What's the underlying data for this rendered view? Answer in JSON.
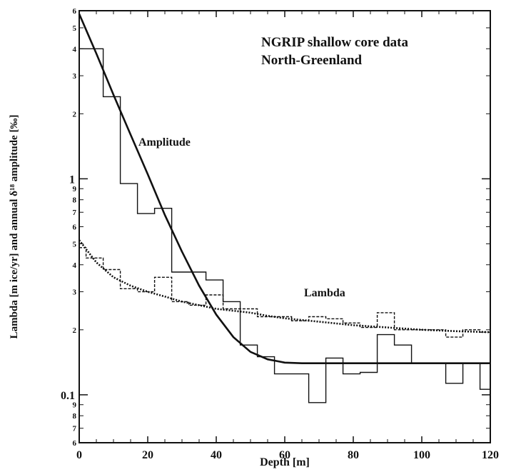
{
  "chart_data": {
    "type": "line",
    "title": "",
    "annotation": {
      "line1": "NGRIP shallow core data",
      "line2": "North-Greenland"
    },
    "xlabel": "Depth [m]",
    "ylabel": "Lambda [m ice/yr] and annual δ¹⁸ amplitude [‰]",
    "xlim": [
      0,
      120
    ],
    "ylim": [
      0.06,
      6
    ],
    "yscale": "log",
    "grid": false,
    "x_ticks": [
      0,
      20,
      40,
      60,
      80,
      100,
      120
    ],
    "x_tick_labels": [
      "0",
      "20",
      "40",
      "60",
      "80",
      "100",
      "120"
    ],
    "y_major_ticks": [
      {
        "value": 0.1,
        "label": "0.1"
      },
      {
        "value": 1,
        "label": "1"
      }
    ],
    "y_minor_ticks": [
      {
        "value": 0.06,
        "label": "6"
      },
      {
        "value": 0.07,
        "label": "7"
      },
      {
        "value": 0.08,
        "label": "8"
      },
      {
        "value": 0.09,
        "label": "9"
      },
      {
        "value": 0.2,
        "label": "2"
      },
      {
        "value": 0.3,
        "label": "3"
      },
      {
        "value": 0.4,
        "label": "4"
      },
      {
        "value": 0.5,
        "label": "5"
      },
      {
        "value": 0.6,
        "label": "6"
      },
      {
        "value": 0.7,
        "label": "7"
      },
      {
        "value": 0.8,
        "label": "8"
      },
      {
        "value": 0.9,
        "label": "9"
      },
      {
        "value": 2,
        "label": "2"
      },
      {
        "value": 3,
        "label": "3"
      },
      {
        "value": 4,
        "label": "4"
      },
      {
        "value": 5,
        "label": "5"
      },
      {
        "value": 6,
        "label": "6"
      }
    ],
    "series": [
      {
        "name": "Amplitude",
        "style": "solid-step",
        "color": "#111111",
        "bins": [
          {
            "x0": 0,
            "x1": 7,
            "y": 4.0
          },
          {
            "x0": 7,
            "x1": 12,
            "y": 2.4
          },
          {
            "x0": 12,
            "x1": 17,
            "y": 0.95
          },
          {
            "x0": 17,
            "x1": 22,
            "y": 0.69
          },
          {
            "x0": 22,
            "x1": 27,
            "y": 0.73
          },
          {
            "x0": 27,
            "x1": 37,
            "y": 0.37
          },
          {
            "x0": 37,
            "x1": 42,
            "y": 0.34
          },
          {
            "x0": 42,
            "x1": 47,
            "y": 0.27
          },
          {
            "x0": 47,
            "x1": 52,
            "y": 0.17
          },
          {
            "x0": 52,
            "x1": 57,
            "y": 0.15
          },
          {
            "x0": 57,
            "x1": 67,
            "y": 0.125
          },
          {
            "x0": 67,
            "x1": 72,
            "y": 0.092
          },
          {
            "x0": 72,
            "x1": 77,
            "y": 0.148
          },
          {
            "x0": 77,
            "x1": 82,
            "y": 0.125
          },
          {
            "x0": 82,
            "x1": 87,
            "y": 0.127
          },
          {
            "x0": 87,
            "x1": 92,
            "y": 0.19
          },
          {
            "x0": 92,
            "x1": 97,
            "y": 0.17
          },
          {
            "x0": 97,
            "x1": 102,
            "y": 0.14
          },
          {
            "x0": 102,
            "x1": 107,
            "y": 0.14
          },
          {
            "x0": 107,
            "x1": 112,
            "y": 0.113
          },
          {
            "x0": 112,
            "x1": 117,
            "y": 0.14
          },
          {
            "x0": 117,
            "x1": 120,
            "y": 0.106
          }
        ]
      },
      {
        "name": "Amplitude fit",
        "style": "solid-thick",
        "color": "#111111",
        "points": [
          [
            0,
            5.8
          ],
          [
            5,
            3.8
          ],
          [
            10,
            2.45
          ],
          [
            15,
            1.6
          ],
          [
            20,
            1.05
          ],
          [
            25,
            0.68
          ],
          [
            30,
            0.46
          ],
          [
            35,
            0.32
          ],
          [
            40,
            0.235
          ],
          [
            45,
            0.185
          ],
          [
            50,
            0.158
          ],
          [
            55,
            0.146
          ],
          [
            60,
            0.141
          ],
          [
            65,
            0.14
          ],
          [
            70,
            0.14
          ],
          [
            80,
            0.14
          ],
          [
            90,
            0.14
          ],
          [
            100,
            0.14
          ],
          [
            110,
            0.14
          ],
          [
            120,
            0.14
          ]
        ]
      },
      {
        "name": "Lambda",
        "style": "dashed-step",
        "color": "#111111",
        "bins": [
          {
            "x0": 0,
            "x1": 2,
            "y": 0.48
          },
          {
            "x0": 2,
            "x1": 7,
            "y": 0.43
          },
          {
            "x0": 7,
            "x1": 12,
            "y": 0.38
          },
          {
            "x0": 12,
            "x1": 17,
            "y": 0.31
          },
          {
            "x0": 17,
            "x1": 22,
            "y": 0.3
          },
          {
            "x0": 22,
            "x1": 27,
            "y": 0.35
          },
          {
            "x0": 27,
            "x1": 32,
            "y": 0.27
          },
          {
            "x0": 32,
            "x1": 37,
            "y": 0.26
          },
          {
            "x0": 37,
            "x1": 42,
            "y": 0.29
          },
          {
            "x0": 42,
            "x1": 47,
            "y": 0.25
          },
          {
            "x0": 47,
            "x1": 52,
            "y": 0.25
          },
          {
            "x0": 52,
            "x1": 57,
            "y": 0.23
          },
          {
            "x0": 57,
            "x1": 62,
            "y": 0.23
          },
          {
            "x0": 62,
            "x1": 67,
            "y": 0.22
          },
          {
            "x0": 67,
            "x1": 72,
            "y": 0.23
          },
          {
            "x0": 72,
            "x1": 77,
            "y": 0.225
          },
          {
            "x0": 77,
            "x1": 82,
            "y": 0.215
          },
          {
            "x0": 82,
            "x1": 87,
            "y": 0.205
          },
          {
            "x0": 87,
            "x1": 92,
            "y": 0.24
          },
          {
            "x0": 92,
            "x1": 97,
            "y": 0.2
          },
          {
            "x0": 97,
            "x1": 102,
            "y": 0.2
          },
          {
            "x0": 102,
            "x1": 107,
            "y": 0.2
          },
          {
            "x0": 107,
            "x1": 112,
            "y": 0.185
          },
          {
            "x0": 112,
            "x1": 117,
            "y": 0.2
          },
          {
            "x0": 117,
            "x1": 120,
            "y": 0.195
          }
        ]
      },
      {
        "name": "Lambda fit",
        "style": "dotted-thick",
        "color": "#111111",
        "points": [
          [
            0,
            0.52
          ],
          [
            5,
            0.41
          ],
          [
            10,
            0.35
          ],
          [
            15,
            0.32
          ],
          [
            20,
            0.3
          ],
          [
            25,
            0.285
          ],
          [
            30,
            0.27
          ],
          [
            35,
            0.26
          ],
          [
            40,
            0.25
          ],
          [
            45,
            0.245
          ],
          [
            50,
            0.24
          ],
          [
            55,
            0.232
          ],
          [
            60,
            0.226
          ],
          [
            70,
            0.218
          ],
          [
            80,
            0.21
          ],
          [
            90,
            0.205
          ],
          [
            100,
            0.2
          ],
          [
            110,
            0.197
          ],
          [
            120,
            0.195
          ]
        ]
      }
    ],
    "series_labels": {
      "amplitude": "Amplitude",
      "lambda": "Lambda"
    }
  }
}
